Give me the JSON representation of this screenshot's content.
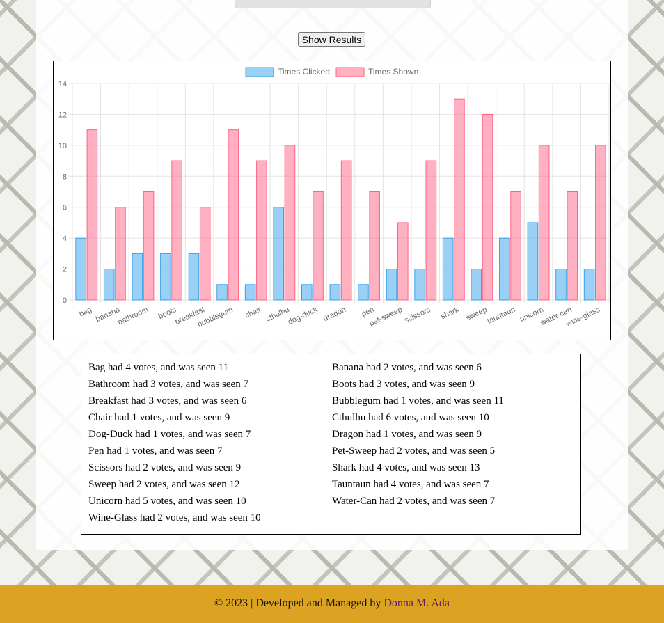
{
  "controls": {
    "show_results_label": "Show Results"
  },
  "chart_data": {
    "type": "bar",
    "categories": [
      "bag",
      "banana",
      "bathroom",
      "boots",
      "breakfast",
      "bubblegum",
      "chair",
      "cthulhu",
      "dog-duck",
      "dragon",
      "pen",
      "pet-sweep",
      "scissors",
      "shark",
      "sweep",
      "tauntaun",
      "unicorn",
      "water-can",
      "wine-glass"
    ],
    "series": [
      {
        "name": "Times Clicked",
        "color": "#36a2eb",
        "values": [
          4,
          2,
          3,
          3,
          3,
          1,
          1,
          6,
          1,
          1,
          1,
          2,
          2,
          4,
          2,
          4,
          5,
          2,
          2
        ]
      },
      {
        "name": "Times Shown",
        "color": "#ff6384",
        "values": [
          11,
          6,
          7,
          9,
          6,
          11,
          9,
          10,
          7,
          9,
          7,
          5,
          9,
          13,
          12,
          7,
          10,
          7,
          10
        ]
      }
    ],
    "ylim": [
      0,
      14
    ],
    "yticks": [
      0,
      2,
      4,
      6,
      8,
      10,
      12,
      14
    ],
    "grid": true,
    "legend": "top-center"
  },
  "results": [
    "Bag had 4 votes, and was seen 11",
    "Banana had 2 votes, and was seen 6",
    "Bathroom had 3 votes, and was seen 7",
    "Boots had 3 votes, and was seen 9",
    "Breakfast had 3 votes, and was seen 6",
    "Bubblegum had 1 votes, and was seen 11",
    "Chair had 1 votes, and was seen 9",
    "Cthulhu had 6 votes, and was seen 10",
    "Dog-Duck had 1 votes, and was seen 7",
    "Dragon had 1 votes, and was seen 9",
    "Pen had 1 votes, and was seen 7",
    "Pet-Sweep had 2 votes, and was seen 5",
    "Scissors had 2 votes, and was seen 9",
    "Shark had 4 votes, and was seen 13",
    "Sweep had 2 votes, and was seen 12",
    "Tauntaun had 4 votes, and was seen 7",
    "Unicorn had 5 votes, and was seen 10",
    "Water-Can had 2 votes, and was seen 7",
    "Wine-Glass had 2 votes, and was seen 10"
  ],
  "footer": {
    "text": "© 2023 | Developed and Managed by ",
    "author": "Donna M. Ada"
  }
}
